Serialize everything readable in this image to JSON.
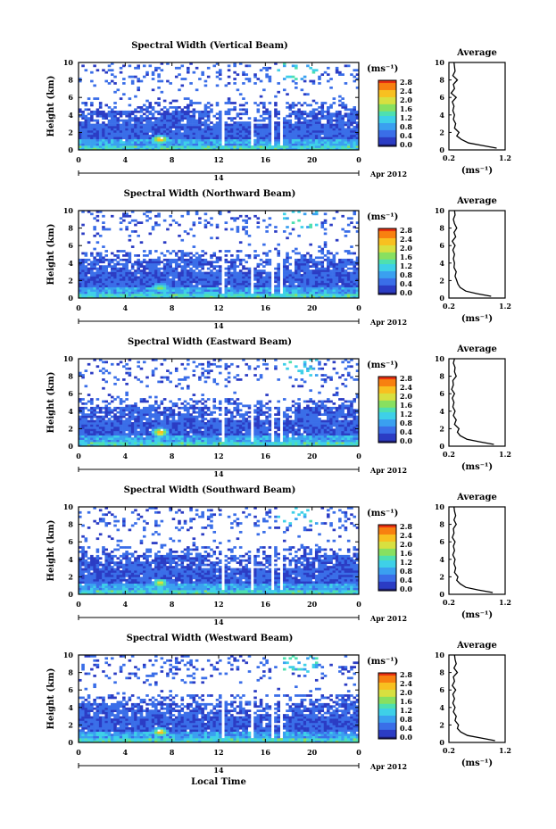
{
  "shared": {
    "y_ticks": [
      "0",
      "2",
      "4",
      "6",
      "8",
      "10"
    ],
    "x_ticks": [
      "0",
      "4",
      "8",
      "12",
      "16",
      "20",
      "0"
    ],
    "date_day": "14",
    "date_month": "Apr 2012",
    "ylabel": "Height (km)",
    "xlabel": "Local Time",
    "colorbar_unit": "(ms⁻¹)",
    "colorbar_ticks": [
      "0.0",
      "0.4",
      "0.8",
      "1.2",
      "1.6",
      "2.0",
      "2.4",
      "2.8"
    ],
    "avg_title": "Average",
    "avg_unit": "(ms⁻¹)",
    "avg_x_ticks": [
      "0.2",
      "1.2"
    ],
    "colors": {
      "colormap": [
        "#1a1a6e",
        "#2b3cc4",
        "#3a6ee8",
        "#3aa0f0",
        "#3ed0e8",
        "#4ee0b0",
        "#88e060",
        "#d8e040",
        "#f8c020",
        "#f88010",
        "#e83010"
      ]
    }
  },
  "chart_data": [
    {
      "type": "heatmap",
      "title": "Spectral Width (Vertical Beam)",
      "xlabel": "Local Time",
      "ylabel": "Height (km)",
      "xlim": [
        0,
        24
      ],
      "ylim": [
        0,
        10
      ],
      "colorbar": {
        "label": "(ms⁻¹)",
        "range": [
          0.0,
          2.8
        ]
      },
      "gaps_hours": [
        [
          12.3,
          12.5
        ],
        [
          14.8,
          15.0
        ],
        [
          16.6,
          16.7
        ],
        [
          17.3,
          17.5
        ]
      ],
      "high_width_patch": {
        "time_h": 7.0,
        "height_km": 1.2,
        "value": 2.6
      },
      "average_profile": {
        "title": "Average",
        "xlabel": "(ms⁻¹)",
        "xlim": [
          0.2,
          1.2
        ],
        "height_km": [
          0.2,
          0.5,
          0.8,
          1.2,
          1.6,
          2.0,
          2.5,
          3.0,
          3.5,
          4.0,
          4.5,
          5.0,
          5.5,
          6.0,
          6.5,
          7.0,
          7.5,
          8.0,
          8.5,
          9.0,
          9.5,
          10.0
        ],
        "width_ms": [
          1.05,
          0.8,
          0.55,
          0.42,
          0.34,
          0.38,
          0.3,
          0.32,
          0.28,
          0.3,
          0.27,
          0.29,
          0.26,
          0.33,
          0.24,
          0.3,
          0.28,
          0.35,
          0.27,
          0.31,
          0.3,
          0.29
        ]
      }
    },
    {
      "type": "heatmap",
      "title": "Spectral Width (Northward Beam)",
      "xlabel": "Local Time",
      "ylabel": "Height (km)",
      "xlim": [
        0,
        24
      ],
      "ylim": [
        0,
        10
      ],
      "colorbar": {
        "label": "(ms⁻¹)",
        "range": [
          0.0,
          2.8
        ]
      },
      "gaps_hours": [
        [
          12.3,
          12.5
        ],
        [
          14.8,
          15.0
        ],
        [
          16.6,
          16.7
        ],
        [
          17.3,
          17.5
        ]
      ],
      "high_width_patch": {
        "time_h": 7.0,
        "height_km": 1.2,
        "value": 2.0
      },
      "average_profile": {
        "title": "Average",
        "xlabel": "(ms⁻¹)",
        "xlim": [
          0.2,
          1.2
        ],
        "height_km": [
          0.2,
          0.5,
          0.8,
          1.2,
          1.6,
          2.0,
          2.5,
          3.0,
          3.5,
          4.0,
          4.5,
          5.0,
          5.5,
          6.0,
          6.5,
          7.0,
          7.5,
          8.0,
          8.5,
          9.0,
          9.5,
          10.0
        ],
        "width_ms": [
          0.95,
          0.7,
          0.5,
          0.4,
          0.36,
          0.34,
          0.31,
          0.33,
          0.29,
          0.3,
          0.28,
          0.3,
          0.27,
          0.31,
          0.26,
          0.32,
          0.29,
          0.34,
          0.3,
          0.28,
          0.31,
          0.3
        ]
      }
    },
    {
      "type": "heatmap",
      "title": "Spectral Width (Eastward Beam)",
      "xlabel": "Local Time",
      "ylabel": "Height (km)",
      "xlim": [
        0,
        24
      ],
      "ylim": [
        0,
        10
      ],
      "colorbar": {
        "label": "(ms⁻¹)",
        "range": [
          0.0,
          2.8
        ]
      },
      "gaps_hours": [
        [
          12.3,
          12.5
        ],
        [
          14.8,
          15.0
        ],
        [
          16.6,
          16.7
        ],
        [
          17.3,
          17.5
        ]
      ],
      "high_width_patch": {
        "time_h": 7.0,
        "height_km": 1.6,
        "value": 2.7
      },
      "average_profile": {
        "title": "Average",
        "xlabel": "(ms⁻¹)",
        "xlim": [
          0.2,
          1.2
        ],
        "height_km": [
          0.2,
          0.5,
          0.8,
          1.2,
          1.6,
          2.0,
          2.5,
          3.0,
          3.5,
          4.0,
          4.5,
          5.0,
          5.5,
          6.0,
          6.5,
          7.0,
          7.5,
          8.0,
          8.5,
          9.0,
          9.5,
          10.0
        ],
        "width_ms": [
          1.0,
          0.75,
          0.52,
          0.4,
          0.35,
          0.38,
          0.3,
          0.33,
          0.28,
          0.31,
          0.27,
          0.29,
          0.26,
          0.3,
          0.25,
          0.28,
          0.27,
          0.33,
          0.3,
          0.31,
          0.28,
          0.3
        ]
      }
    },
    {
      "type": "heatmap",
      "title": "Spectral Width (Southward Beam)",
      "xlabel": "Local Time",
      "ylabel": "Height (km)",
      "xlim": [
        0,
        24
      ],
      "ylim": [
        0,
        10
      ],
      "colorbar": {
        "label": "(ms⁻¹)",
        "range": [
          0.0,
          2.8
        ]
      },
      "gaps_hours": [
        [
          12.3,
          12.5
        ],
        [
          14.8,
          15.0
        ],
        [
          16.6,
          16.7
        ],
        [
          17.3,
          17.5
        ]
      ],
      "high_width_patch": {
        "time_h": 7.0,
        "height_km": 1.3,
        "value": 2.2
      },
      "average_profile": {
        "title": "Average",
        "xlabel": "(ms⁻¹)",
        "xlim": [
          0.2,
          1.2
        ],
        "height_km": [
          0.2,
          0.5,
          0.8,
          1.2,
          1.6,
          2.0,
          2.5,
          3.0,
          3.5,
          4.0,
          4.5,
          5.0,
          5.5,
          6.0,
          6.5,
          7.0,
          7.5,
          8.0,
          8.5,
          9.0,
          9.5,
          10.0
        ],
        "width_ms": [
          0.98,
          0.72,
          0.5,
          0.4,
          0.34,
          0.36,
          0.3,
          0.32,
          0.29,
          0.31,
          0.27,
          0.3,
          0.28,
          0.31,
          0.26,
          0.29,
          0.28,
          0.33,
          0.29,
          0.32,
          0.3,
          0.29
        ]
      }
    },
    {
      "type": "heatmap",
      "title": "Spectral Width (Westward Beam)",
      "xlabel": "Local Time",
      "ylabel": "Height (km)",
      "xlim": [
        0,
        24
      ],
      "ylim": [
        0,
        10
      ],
      "colorbar": {
        "label": "(ms⁻¹)",
        "range": [
          0.0,
          2.8
        ]
      },
      "gaps_hours": [
        [
          12.3,
          12.5
        ],
        [
          14.8,
          15.0
        ],
        [
          16.6,
          16.7
        ],
        [
          17.3,
          17.5
        ]
      ],
      "high_width_patch": {
        "time_h": 7.0,
        "height_km": 1.2,
        "value": 2.5
      },
      "average_profile": {
        "title": "Average",
        "xlabel": "(ms⁻¹)",
        "xlim": [
          0.2,
          1.2
        ],
        "height_km": [
          0.2,
          0.5,
          0.8,
          1.2,
          1.6,
          2.0,
          2.5,
          3.0,
          3.5,
          4.0,
          4.5,
          5.0,
          5.5,
          6.0,
          6.5,
          7.0,
          7.5,
          8.0,
          8.5,
          9.0,
          9.5,
          10.0
        ],
        "width_ms": [
          1.02,
          0.78,
          0.53,
          0.41,
          0.35,
          0.37,
          0.31,
          0.33,
          0.28,
          0.31,
          0.27,
          0.3,
          0.27,
          0.32,
          0.26,
          0.3,
          0.28,
          0.35,
          0.29,
          0.33,
          0.31,
          0.3
        ]
      }
    }
  ]
}
